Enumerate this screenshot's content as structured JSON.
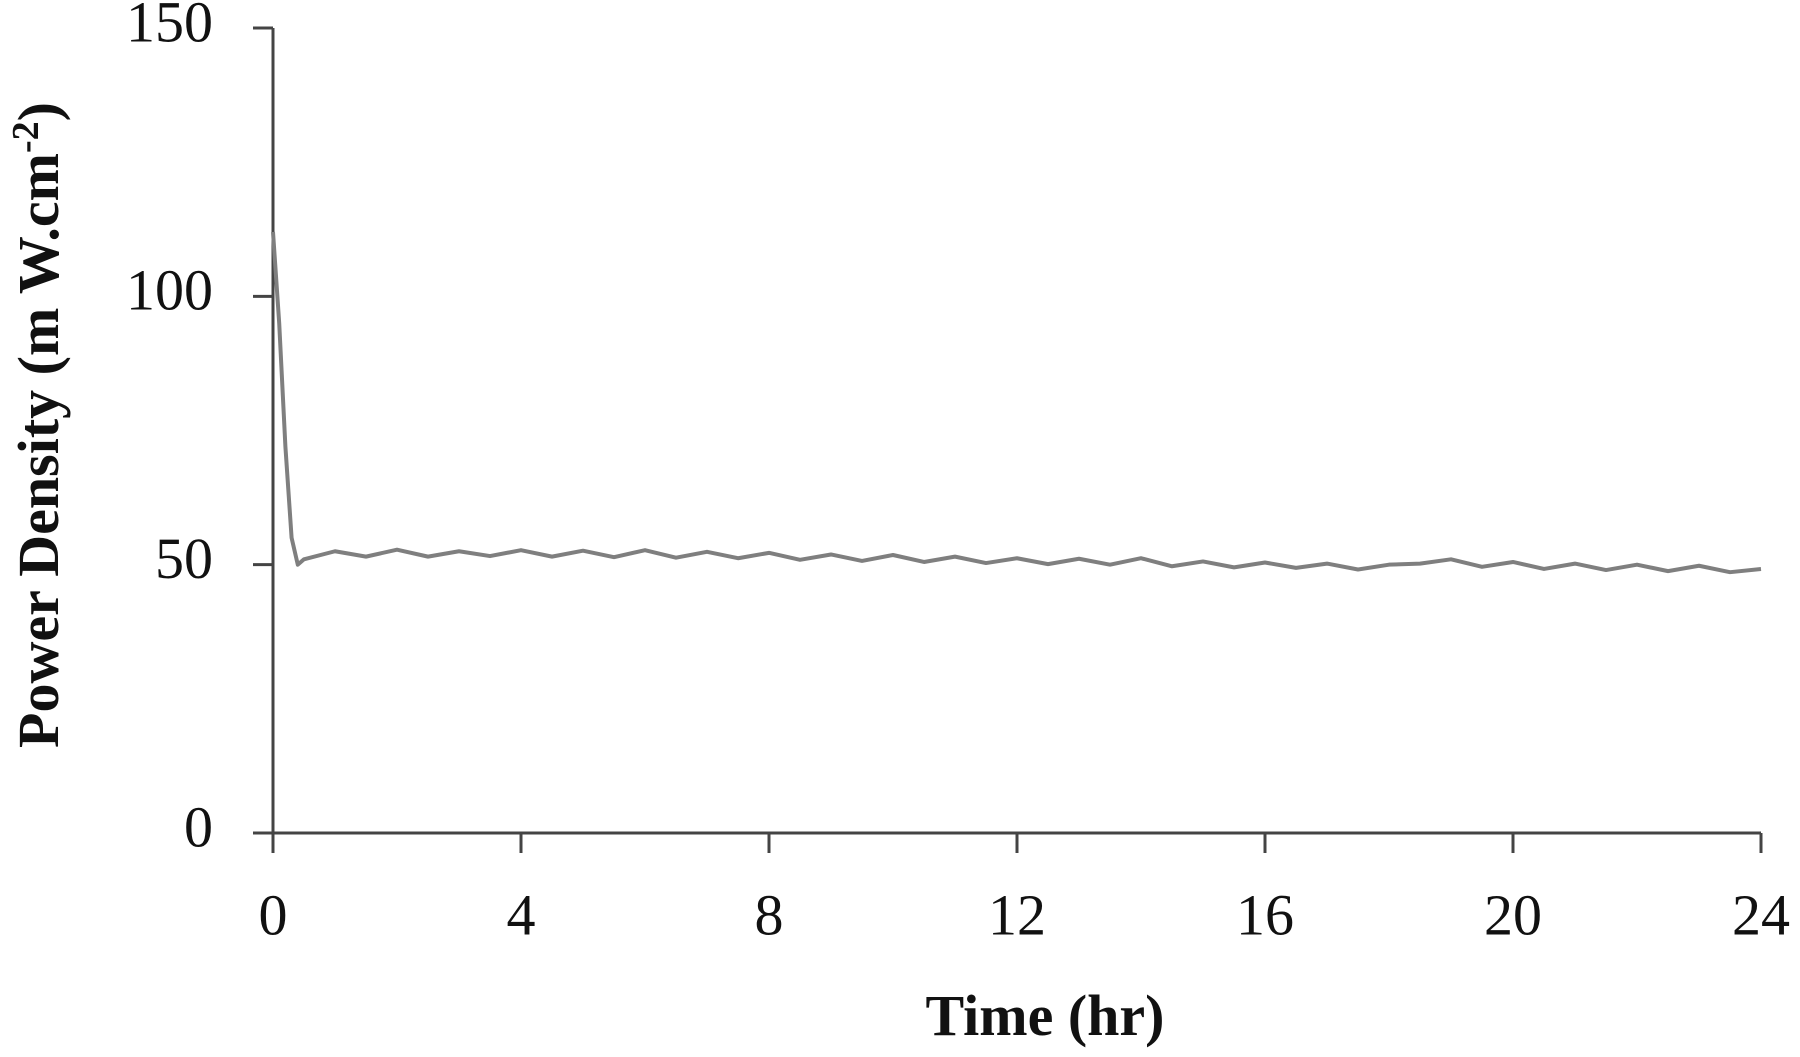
{
  "chart_data": {
    "type": "line",
    "x_label": "Time (hr)",
    "y_label": {
      "text": "Power Density (m W.cm",
      "superscript": "-2",
      "suffix": ")"
    },
    "x": [
      0,
      0.1,
      0.2,
      0.3,
      0.4,
      0.5,
      1,
      1.5,
      2,
      2.5,
      3,
      3.5,
      4,
      4.5,
      5,
      5.5,
      6,
      6.5,
      7,
      7.5,
      8,
      8.5,
      9,
      9.5,
      10,
      10.5,
      11,
      11.5,
      12,
      12.5,
      13,
      13.5,
      14,
      14.5,
      15,
      15.5,
      16,
      16.5,
      17,
      17.5,
      18,
      18.5,
      19,
      19.5,
      20,
      20.5,
      21,
      21.5,
      22,
      22.5,
      23,
      23.5,
      24
    ],
    "series": [
      {
        "color": "#7f7f7f",
        "values": [
          112,
          95,
          72,
          55,
          50,
          51,
          52.5,
          51.5,
          52.8,
          51.5,
          52.5,
          51.6,
          52.7,
          51.5,
          52.6,
          51.4,
          52.7,
          51.3,
          52.4,
          51.2,
          52.2,
          50.9,
          51.9,
          50.7,
          51.8,
          50.5,
          51.5,
          50.3,
          51.2,
          50.1,
          51.1,
          50,
          51.2,
          49.7,
          50.6,
          49.5,
          50.4,
          49.4,
          50.2,
          49.1,
          50,
          50.2,
          51,
          49.6,
          50.5,
          49.2,
          50.2,
          49,
          50,
          48.8,
          49.8,
          48.6,
          49.2
        ]
      }
    ],
    "xlim": [
      0,
      24
    ],
    "xticks": [
      0,
      4,
      8,
      12,
      16,
      20,
      24
    ],
    "ylim": [
      0,
      150
    ],
    "yticks": [
      0,
      50,
      100,
      150
    ]
  }
}
